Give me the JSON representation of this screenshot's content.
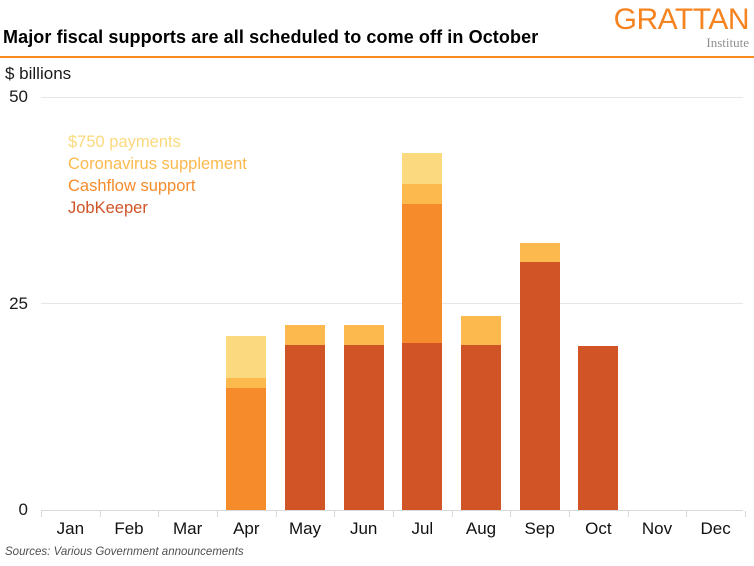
{
  "header": {
    "title": "Major fiscal supports are all scheduled to come off in October",
    "logo": {
      "word": "GRATTAN",
      "sub": "Institute"
    }
  },
  "colors": {
    "accent_orange": "#F68B1F",
    "grid": "#E6E6E6",
    "axis": "#D9D9D9"
  },
  "chart_data": {
    "type": "bar",
    "stacked": true,
    "title": "Major fiscal supports are all scheduled to come off in October",
    "ylabel": "$ billions",
    "xlabel": "",
    "categories": [
      "Jan",
      "Feb",
      "Mar",
      "Apr",
      "May",
      "Jun",
      "Jul",
      "Aug",
      "Sep",
      "Oct",
      "Nov",
      "Dec"
    ],
    "yticks": [
      0,
      25,
      50
    ],
    "ylim": [
      0,
      50
    ],
    "grid": true,
    "legend_position": "inside-top-left",
    "units": "$ billions",
    "series": [
      {
        "name": "$750 payments",
        "color": "#FBD97E",
        "values": [
          0,
          0,
          0,
          5.1,
          0,
          0,
          3.7,
          0,
          0,
          0,
          0,
          0
        ]
      },
      {
        "name": "Coronavirus supplement",
        "color": "#FCB94E",
        "values": [
          0,
          0,
          0,
          1.2,
          2.4,
          2.4,
          2.4,
          3.5,
          2.3,
          0,
          0,
          0
        ]
      },
      {
        "name": "Cashflow support",
        "color": "#F68B2C",
        "values": [
          0,
          0,
          0,
          14.8,
          0,
          0,
          16.9,
          0,
          0,
          0,
          0,
          0
        ]
      },
      {
        "name": "JobKeeper",
        "color": "#D05426",
        "values": [
          0,
          0,
          0,
          0,
          20,
          20,
          20.2,
          20,
          30,
          19.9,
          0,
          0
        ]
      }
    ],
    "stack_order_bottom_to_top": [
      "JobKeeper",
      "Cashflow support",
      "Coronavirus supplement",
      "$750 payments"
    ]
  },
  "footer": {
    "source": "Sources: Various Government announcements"
  }
}
